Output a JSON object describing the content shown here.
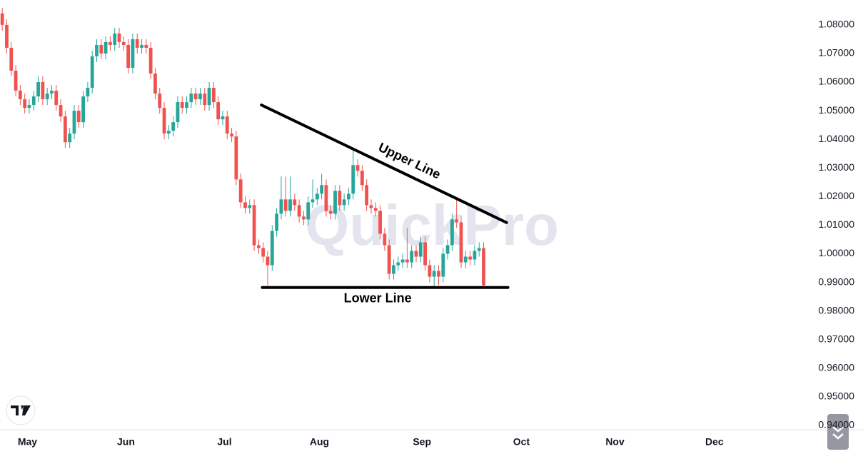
{
  "chart_data": {
    "type": "candlestick",
    "watermark": "QuickPro",
    "colors": {
      "up": "#26a69a",
      "down": "#ef5350"
    },
    "ylim": [
      0.9385,
      1.0887
    ],
    "yticks": [
      {
        "value": 0.94,
        "label": "0.94000"
      },
      {
        "value": 0.95,
        "label": "0.95000"
      },
      {
        "value": 0.96,
        "label": "0.96000"
      },
      {
        "value": 0.97,
        "label": "0.97000"
      },
      {
        "value": 0.98,
        "label": "0.98000"
      },
      {
        "value": 0.99,
        "label": "0.99000"
      },
      {
        "value": 1.0,
        "label": "1.00000"
      },
      {
        "value": 1.01,
        "label": "1.01000"
      },
      {
        "value": 1.02,
        "label": "1.02000"
      },
      {
        "value": 1.03,
        "label": "1.03000"
      },
      {
        "value": 1.04,
        "label": "1.04000"
      },
      {
        "value": 1.05,
        "label": "1.05000"
      },
      {
        "value": 1.06,
        "label": "1.06000"
      },
      {
        "value": 1.07,
        "label": "1.07000"
      },
      {
        "value": 1.08,
        "label": "1.08000"
      }
    ],
    "xlim": [
      -0.5,
      178
    ],
    "xticks": [
      {
        "value": 5.6,
        "label": "May"
      },
      {
        "value": 27.5,
        "label": "Jun"
      },
      {
        "value": 49.4,
        "label": "Jul"
      },
      {
        "value": 70.5,
        "label": "Aug"
      },
      {
        "value": 93.3,
        "label": "Sep"
      },
      {
        "value": 115.4,
        "label": "Oct"
      },
      {
        "value": 136.2,
        "label": "Nov"
      },
      {
        "value": 158.3,
        "label": "Dec"
      }
    ],
    "candles": [
      [
        1.084,
        1.086,
        1.078,
        1.08
      ],
      [
        1.08,
        1.082,
        1.07,
        1.072
      ],
      [
        1.072,
        1.074,
        1.062,
        1.064
      ],
      [
        1.064,
        1.066,
        1.055,
        1.057
      ],
      [
        1.057,
        1.059,
        1.052,
        1.054
      ],
      [
        1.054,
        1.056,
        1.049,
        1.051
      ],
      [
        1.051,
        1.054,
        1.049,
        1.052
      ],
      [
        1.052,
        1.057,
        1.05,
        1.055
      ],
      [
        1.055,
        1.062,
        1.053,
        1.06
      ],
      [
        1.06,
        1.062,
        1.052,
        1.054
      ],
      [
        1.054,
        1.058,
        1.052,
        1.056
      ],
      [
        1.056,
        1.059,
        1.054,
        1.057
      ],
      [
        1.057,
        1.059,
        1.05,
        1.052
      ],
      [
        1.052,
        1.054,
        1.046,
        1.048
      ],
      [
        1.048,
        1.05,
        1.037,
        1.039
      ],
      [
        1.039,
        1.044,
        1.037,
        1.042
      ],
      [
        1.042,
        1.052,
        1.04,
        1.05
      ],
      [
        1.05,
        1.052,
        1.044,
        1.046
      ],
      [
        1.046,
        1.057,
        1.044,
        1.055
      ],
      [
        1.055,
        1.06,
        1.053,
        1.058
      ],
      [
        1.058,
        1.071,
        1.056,
        1.069
      ],
      [
        1.069,
        1.075,
        1.067,
        1.073
      ],
      [
        1.073,
        1.075,
        1.068,
        1.07
      ],
      [
        1.07,
        1.076,
        1.068,
        1.074
      ],
      [
        1.074,
        1.076,
        1.071,
        1.073
      ],
      [
        1.073,
        1.079,
        1.071,
        1.077
      ],
      [
        1.077,
        1.079,
        1.072,
        1.074
      ],
      [
        1.074,
        1.076,
        1.071,
        1.073
      ],
      [
        1.073,
        1.075,
        1.063,
        1.065
      ],
      [
        1.065,
        1.077,
        1.063,
        1.075
      ],
      [
        1.075,
        1.077,
        1.07,
        1.072
      ],
      [
        1.072,
        1.075,
        1.07,
        1.073
      ],
      [
        1.073,
        1.075,
        1.07,
        1.072
      ],
      [
        1.072,
        1.074,
        1.061,
        1.063
      ],
      [
        1.063,
        1.065,
        1.054,
        1.056
      ],
      [
        1.056,
        1.058,
        1.049,
        1.051
      ],
      [
        1.051,
        1.053,
        1.04,
        1.042
      ],
      [
        1.042,
        1.045,
        1.04,
        1.043
      ],
      [
        1.043,
        1.048,
        1.041,
        1.046
      ],
      [
        1.046,
        1.055,
        1.044,
        1.053
      ],
      [
        1.053,
        1.055,
        1.049,
        1.051
      ],
      [
        1.051,
        1.055,
        1.049,
        1.053
      ],
      [
        1.053,
        1.058,
        1.051,
        1.056
      ],
      [
        1.056,
        1.058,
        1.052,
        1.054
      ],
      [
        1.054,
        1.058,
        1.052,
        1.056
      ],
      [
        1.056,
        1.058,
        1.05,
        1.052
      ],
      [
        1.052,
        1.06,
        1.05,
        1.058
      ],
      [
        1.058,
        1.06,
        1.051,
        1.053
      ],
      [
        1.053,
        1.055,
        1.045,
        1.047
      ],
      [
        1.047,
        1.05,
        1.045,
        1.048
      ],
      [
        1.048,
        1.05,
        1.04,
        1.042
      ],
      [
        1.042,
        1.044,
        1.039,
        1.041
      ],
      [
        1.041,
        1.043,
        1.024,
        1.026
      ],
      [
        1.026,
        1.028,
        1.016,
        1.018
      ],
      [
        1.018,
        1.02,
        1.014,
        1.016
      ],
      [
        1.016,
        1.019,
        1.014,
        1.017
      ],
      [
        1.017,
        1.019,
        1.001,
        1.003
      ],
      [
        1.003,
        1.005,
        1.0,
        1.002
      ],
      [
        1.002,
        1.004,
        0.997,
        0.999
      ],
      [
        0.999,
        1.001,
        0.989,
        0.996
      ],
      [
        0.996,
        1.01,
        0.994,
        1.008
      ],
      [
        1.008,
        1.016,
        1.006,
        1.014
      ],
      [
        1.014,
        1.027,
        1.012,
        1.019
      ],
      [
        1.019,
        1.027,
        1.013,
        1.015
      ],
      [
        1.015,
        1.027,
        1.013,
        1.019
      ],
      [
        1.019,
        1.021,
        1.015,
        1.017
      ],
      [
        1.017,
        1.019,
        1.011,
        1.013
      ],
      [
        1.013,
        1.015,
        1.01,
        1.012
      ],
      [
        1.012,
        1.02,
        1.01,
        1.018
      ],
      [
        1.018,
        1.026,
        1.016,
        1.019
      ],
      [
        1.019,
        1.023,
        1.017,
        1.021
      ],
      [
        1.021,
        1.028,
        1.019,
        1.024
      ],
      [
        1.024,
        1.026,
        1.013,
        1.015
      ],
      [
        1.015,
        1.017,
        1.012,
        1.014
      ],
      [
        1.014,
        1.024,
        1.012,
        1.022
      ],
      [
        1.022,
        1.024,
        1.015,
        1.017
      ],
      [
        1.017,
        1.021,
        1.015,
        1.019
      ],
      [
        1.019,
        1.023,
        1.017,
        1.021
      ],
      [
        1.021,
        1.037,
        1.019,
        1.031
      ],
      [
        1.031,
        1.033,
        1.027,
        1.029
      ],
      [
        1.029,
        1.031,
        1.022,
        1.024
      ],
      [
        1.024,
        1.026,
        1.015,
        1.017
      ],
      [
        1.017,
        1.019,
        1.014,
        1.016
      ],
      [
        1.016,
        1.018,
        1.013,
        1.015
      ],
      [
        1.015,
        1.017,
        1.005,
        1.007
      ],
      [
        1.007,
        1.009,
        1.001,
        1.003
      ],
      [
        1.003,
        1.005,
        0.991,
        0.993
      ],
      [
        0.993,
        0.998,
        0.991,
        0.996
      ],
      [
        0.996,
        0.999,
        0.994,
        0.997
      ],
      [
        0.997,
        1.0,
        0.995,
        0.998
      ],
      [
        0.998,
        1.009,
        0.995,
        0.997
      ],
      [
        0.997,
        1.003,
        0.995,
        1.001
      ],
      [
        1.001,
        1.003,
        0.997,
        0.999
      ],
      [
        0.999,
        1.006,
        0.997,
        1.004
      ],
      [
        1.004,
        1.006,
        0.994,
        0.996
      ],
      [
        0.996,
        0.998,
        0.99,
        0.992
      ],
      [
        0.992,
        0.996,
        0.988,
        0.994
      ],
      [
        0.994,
        0.996,
        0.989,
        0.992
      ],
      [
        0.992,
        1.002,
        0.99,
        1.0
      ],
      [
        1.0,
        1.005,
        0.998,
        1.003
      ],
      [
        1.003,
        1.014,
        1.001,
        1.012
      ],
      [
        1.012,
        1.019,
        1.009,
        1.011
      ],
      [
        1.011,
        1.013,
        0.995,
        0.997
      ],
      [
        0.997,
        1.001,
        0.995,
        0.999
      ],
      [
        0.999,
        1.001,
        0.996,
        0.998
      ],
      [
        0.998,
        1.003,
        0.996,
        1.001
      ],
      [
        1.001,
        1.004,
        0.999,
        1.002
      ],
      [
        1.002,
        1.004,
        0.988,
        0.989
      ]
    ],
    "lines": [
      {
        "label": "Upper Line",
        "x": [
          57.6,
          112.1
        ],
        "y": [
          1.052,
          1.0109
        ]
      },
      {
        "label": "Lower Line",
        "x": [
          57.8,
          112.4
        ],
        "y": [
          0.9882,
          0.9882
        ]
      }
    ]
  }
}
